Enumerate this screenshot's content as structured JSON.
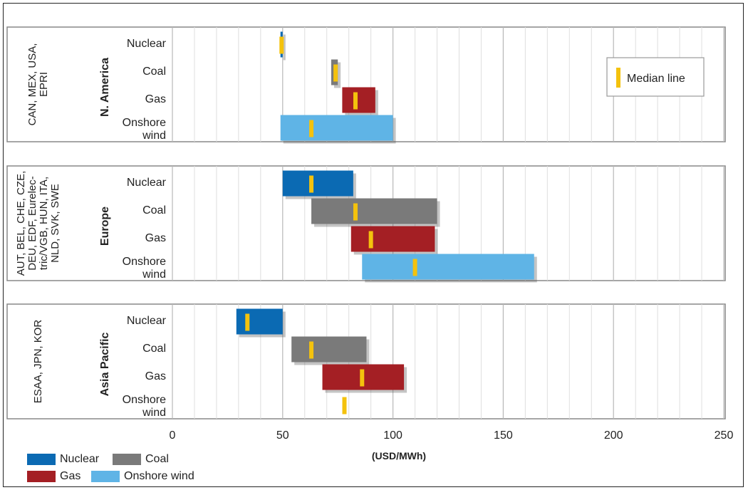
{
  "chart_data": {
    "type": "bar",
    "subtype": "floating-range-with-median",
    "xlabel": "(USD/MWh)",
    "xlim": [
      0,
      250
    ],
    "xticks": [
      0,
      50,
      100,
      150,
      200,
      250
    ],
    "grid": true,
    "categories": [
      "Nuclear",
      "Coal",
      "Gas",
      "Onshore wind"
    ],
    "category_labels": [
      {
        "line1": "Nuclear",
        "line2": ""
      },
      {
        "line1": "Coal",
        "line2": ""
      },
      {
        "line1": "Gas",
        "line2": ""
      },
      {
        "line1": "Onshore",
        "line2": "wind"
      }
    ],
    "colors": {
      "Nuclear": "#0b6ab3",
      "Coal": "#7a7a7a",
      "Gas": "#a41f24",
      "Onshore wind": "#5fb4e6",
      "median": "#f4c20d"
    },
    "panels": [
      {
        "region": "N. America",
        "countries_lines": [
          "CAN, MEX, USA,",
          "EPRI"
        ],
        "bars": [
          {
            "tech": "Nuclear",
            "min": 49,
            "max": 50,
            "median": 49.5
          },
          {
            "tech": "Coal",
            "min": 72,
            "max": 75,
            "median": 74
          },
          {
            "tech": "Gas",
            "min": 77,
            "max": 92,
            "median": 83
          },
          {
            "tech": "Onshore wind",
            "min": 49,
            "max": 100,
            "median": 63
          }
        ]
      },
      {
        "region": "Europe",
        "countries_lines": [
          "AUT, BEL, CHE, CZE,",
          "DEU, EDF, Eurelec-",
          "tric/VGB, HUN, ITA,",
          "NLD, SVK, SWE"
        ],
        "bars": [
          {
            "tech": "Nuclear",
            "min": 50,
            "max": 82,
            "median": 63
          },
          {
            "tech": "Coal",
            "min": 63,
            "max": 120,
            "median": 83
          },
          {
            "tech": "Gas",
            "min": 81,
            "max": 119,
            "median": 90
          },
          {
            "tech": "Onshore wind",
            "min": 86,
            "max": 164,
            "median": 110
          }
        ]
      },
      {
        "region": "Asia Pacific",
        "countries_lines": [
          "ESAA, JPN, KOR"
        ],
        "bars": [
          {
            "tech": "Nuclear",
            "min": 29,
            "max": 50,
            "median": 34
          },
          {
            "tech": "Coal",
            "min": 54,
            "max": 88,
            "median": 63
          },
          {
            "tech": "Gas",
            "min": 68,
            "max": 105,
            "median": 86
          },
          {
            "tech": "Onshore wind",
            "min": null,
            "max": null,
            "median": 78
          }
        ]
      }
    ],
    "inset_legend": {
      "label": "Median line",
      "position": "top-right"
    },
    "legend": {
      "position": "bottom-left",
      "items": [
        "Nuclear",
        "Coal",
        "Gas",
        "Onshore wind"
      ]
    }
  }
}
